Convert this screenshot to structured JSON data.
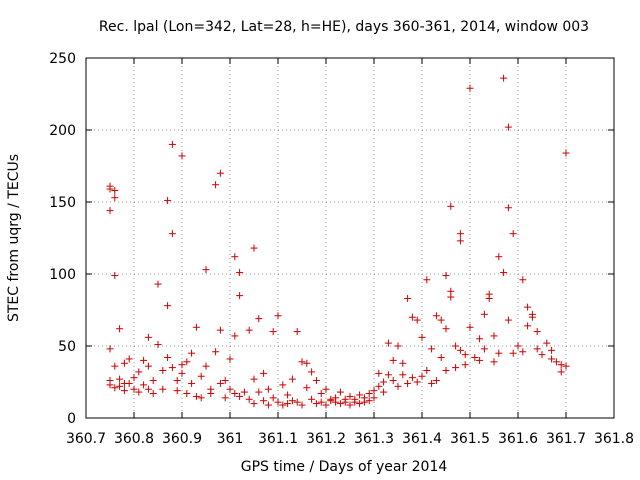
{
  "chart_data": {
    "type": "scatter",
    "title": "Rec. lpal (Lon=342, Lat=28, h=HE), days 360-361, 2014, window 003",
    "xlabel": "GPS time / Days of year 2014",
    "ylabel": "STEC from uqrg / TECUs",
    "xlim": [
      360.7,
      361.8
    ],
    "ylim": [
      0,
      250
    ],
    "xticks": [
      360.7,
      360.8,
      360.9,
      361,
      361.1,
      361.2,
      361.3,
      361.4,
      361.5,
      361.6,
      361.7,
      361.8
    ],
    "xtick_labels": [
      "360.7",
      "360.8",
      "360.9",
      "361",
      "361.1",
      "361.2",
      "361.3",
      "361.4",
      "361.5",
      "361.6",
      "361.7",
      "361.8"
    ],
    "yticks": [
      0,
      50,
      100,
      150,
      200,
      250
    ],
    "ytick_labels": [
      "0",
      "50",
      "100",
      "150",
      "200",
      "250"
    ],
    "grid": true,
    "marker": "+",
    "color": "#cc0000",
    "points": [
      [
        360.75,
        161
      ],
      [
        360.75,
        159
      ],
      [
        360.75,
        144
      ],
      [
        360.76,
        158
      ],
      [
        360.76,
        153
      ],
      [
        360.75,
        48
      ],
      [
        360.76,
        99
      ],
      [
        360.77,
        62
      ],
      [
        360.75,
        26
      ],
      [
        360.75,
        23
      ],
      [
        360.76,
        36
      ],
      [
        360.76,
        21
      ],
      [
        360.77,
        22
      ],
      [
        360.77,
        27
      ],
      [
        360.78,
        24
      ],
      [
        360.78,
        19
      ],
      [
        360.78,
        38
      ],
      [
        360.79,
        41
      ],
      [
        360.79,
        24
      ],
      [
        360.8,
        20
      ],
      [
        360.8,
        28
      ],
      [
        360.81,
        32
      ],
      [
        360.81,
        18
      ],
      [
        360.82,
        23
      ],
      [
        360.82,
        40
      ],
      [
        360.83,
        36
      ],
      [
        360.83,
        20
      ],
      [
        360.83,
        56
      ],
      [
        360.84,
        26
      ],
      [
        360.84,
        17
      ],
      [
        360.85,
        51
      ],
      [
        360.85,
        93
      ],
      [
        360.86,
        33
      ],
      [
        360.86,
        20
      ],
      [
        360.87,
        151
      ],
      [
        360.87,
        78
      ],
      [
        360.87,
        42
      ],
      [
        360.88,
        35
      ],
      [
        360.88,
        128
      ],
      [
        360.88,
        190
      ],
      [
        360.89,
        26
      ],
      [
        360.89,
        19
      ],
      [
        360.9,
        182
      ],
      [
        360.9,
        37
      ],
      [
        360.9,
        31
      ],
      [
        360.91,
        17
      ],
      [
        360.91,
        39
      ],
      [
        360.92,
        24
      ],
      [
        360.92,
        45
      ],
      [
        360.93,
        63
      ],
      [
        360.93,
        15
      ],
      [
        360.94,
        29
      ],
      [
        360.94,
        14
      ],
      [
        360.95,
        103
      ],
      [
        360.95,
        36
      ],
      [
        360.96,
        20
      ],
      [
        360.96,
        17
      ],
      [
        360.97,
        162
      ],
      [
        360.97,
        46
      ],
      [
        360.98,
        170
      ],
      [
        360.98,
        24
      ],
      [
        360.98,
        61
      ],
      [
        360.99,
        26
      ],
      [
        360.99,
        14
      ],
      [
        361.0,
        41
      ],
      [
        361.0,
        20
      ],
      [
        361.01,
        17
      ],
      [
        361.01,
        112
      ],
      [
        361.01,
        57
      ],
      [
        361.02,
        101
      ],
      [
        361.02,
        85
      ],
      [
        361.02,
        15
      ],
      [
        361.03,
        18
      ],
      [
        361.04,
        61
      ],
      [
        361.04,
        13
      ],
      [
        361.05,
        118
      ],
      [
        361.05,
        27
      ],
      [
        361.05,
        10
      ],
      [
        361.06,
        69
      ],
      [
        361.06,
        18
      ],
      [
        361.07,
        31
      ],
      [
        361.07,
        12
      ],
      [
        361.08,
        9
      ],
      [
        361.08,
        20
      ],
      [
        361.09,
        60
      ],
      [
        361.09,
        14
      ],
      [
        361.1,
        71
      ],
      [
        361.1,
        11
      ],
      [
        361.11,
        9
      ],
      [
        361.11,
        23
      ],
      [
        361.12,
        16
      ],
      [
        361.12,
        10
      ],
      [
        361.13,
        27
      ],
      [
        361.13,
        12
      ],
      [
        361.14,
        60
      ],
      [
        361.14,
        11
      ],
      [
        361.15,
        39
      ],
      [
        361.15,
        9
      ],
      [
        361.16,
        38
      ],
      [
        361.16,
        21
      ],
      [
        361.17,
        32
      ],
      [
        361.17,
        13
      ],
      [
        361.18,
        26
      ],
      [
        361.18,
        10
      ],
      [
        361.19,
        11
      ],
      [
        361.19,
        17
      ],
      [
        361.2,
        9
      ],
      [
        361.2,
        20
      ],
      [
        361.21,
        12
      ],
      [
        361.21,
        13
      ],
      [
        361.22,
        11
      ],
      [
        361.22,
        14
      ],
      [
        361.23,
        10
      ],
      [
        361.23,
        18
      ],
      [
        361.24,
        11
      ],
      [
        361.24,
        13
      ],
      [
        361.25,
        9
      ],
      [
        361.25,
        15
      ],
      [
        361.26,
        11
      ],
      [
        361.26,
        13
      ],
      [
        361.27,
        10
      ],
      [
        361.27,
        16
      ],
      [
        361.28,
        11
      ],
      [
        361.28,
        14
      ],
      [
        361.29,
        12
      ],
      [
        361.29,
        17
      ],
      [
        361.3,
        14
      ],
      [
        361.3,
        19
      ],
      [
        361.31,
        22
      ],
      [
        361.31,
        31
      ],
      [
        361.32,
        25
      ],
      [
        361.32,
        18
      ],
      [
        361.33,
        52
      ],
      [
        361.33,
        30
      ],
      [
        361.34,
        26
      ],
      [
        361.34,
        40
      ],
      [
        361.35,
        22
      ],
      [
        361.35,
        50
      ],
      [
        361.36,
        30
      ],
      [
        361.36,
        38
      ],
      [
        361.37,
        24
      ],
      [
        361.37,
        83
      ],
      [
        361.38,
        70
      ],
      [
        361.38,
        28
      ],
      [
        361.39,
        25
      ],
      [
        361.39,
        68
      ],
      [
        361.4,
        29
      ],
      [
        361.4,
        56
      ],
      [
        361.41,
        33
      ],
      [
        361.41,
        96
      ],
      [
        361.42,
        48
      ],
      [
        361.42,
        24
      ],
      [
        361.43,
        71
      ],
      [
        361.43,
        26
      ],
      [
        361.44,
        68
      ],
      [
        361.44,
        42
      ],
      [
        361.45,
        62
      ],
      [
        361.45,
        33
      ],
      [
        361.45,
        99
      ],
      [
        361.46,
        147
      ],
      [
        361.46,
        88
      ],
      [
        361.46,
        84
      ],
      [
        361.47,
        50
      ],
      [
        361.47,
        35
      ],
      [
        361.48,
        128
      ],
      [
        361.48,
        123
      ],
      [
        361.48,
        47
      ],
      [
        361.49,
        37
      ],
      [
        361.49,
        44
      ],
      [
        361.5,
        229
      ],
      [
        361.5,
        63
      ],
      [
        361.51,
        42
      ],
      [
        361.52,
        55
      ],
      [
        361.52,
        40
      ],
      [
        361.53,
        48
      ],
      [
        361.53,
        72
      ],
      [
        361.54,
        86
      ],
      [
        361.54,
        83
      ],
      [
        361.55,
        57
      ],
      [
        361.55,
        39
      ],
      [
        361.56,
        45
      ],
      [
        361.56,
        112
      ],
      [
        361.57,
        101
      ],
      [
        361.57,
        236
      ],
      [
        361.58,
        202
      ],
      [
        361.58,
        146
      ],
      [
        361.58,
        68
      ],
      [
        361.59,
        128
      ],
      [
        361.59,
        45
      ],
      [
        361.6,
        50
      ],
      [
        361.61,
        96
      ],
      [
        361.61,
        46
      ],
      [
        361.62,
        77
      ],
      [
        361.62,
        64
      ],
      [
        361.63,
        70
      ],
      [
        361.63,
        72
      ],
      [
        361.64,
        48
      ],
      [
        361.64,
        60
      ],
      [
        361.65,
        44
      ],
      [
        361.66,
        52
      ],
      [
        361.67,
        41
      ],
      [
        361.67,
        47
      ],
      [
        361.68,
        39
      ],
      [
        361.69,
        37
      ],
      [
        361.69,
        32
      ],
      [
        361.7,
        184
      ],
      [
        361.7,
        36
      ]
    ]
  }
}
